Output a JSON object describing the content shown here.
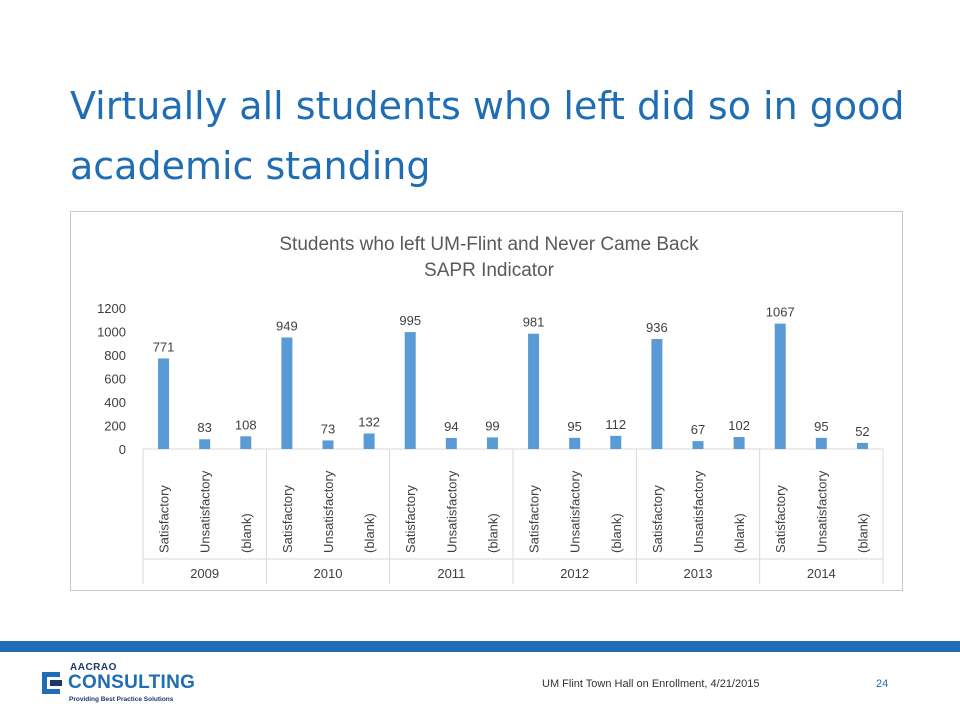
{
  "slide": {
    "title": "Virtually all students who left did so in good academic standing",
    "footer_text": "UM Flint Town Hall on Enrollment, 4/21/2015",
    "page_number": "24"
  },
  "logo": {
    "top": "AACRAO",
    "main": "CONSULTING",
    "tagline": "Providing Best Practice Solutions"
  },
  "colors": {
    "bar": "#5b9bd5",
    "title": "#1f6db5",
    "footer_bar": "#1f6db5"
  },
  "chart_data": {
    "type": "bar",
    "title": "Students who left UM-Flint and Never Came Back",
    "subtitle": "SAPR Indicator",
    "ylim": [
      0,
      1200
    ],
    "yticks": [
      0,
      200,
      400,
      600,
      800,
      1000,
      1200
    ],
    "groups": [
      {
        "label": "2009",
        "categories": [
          "Satisfactory",
          "Unsatisfactory",
          "(blank)"
        ],
        "values": [
          771,
          83,
          108
        ]
      },
      {
        "label": "2010",
        "categories": [
          "Satisfactory",
          "Unsatisfactory",
          "(blank)"
        ],
        "values": [
          949,
          73,
          132
        ]
      },
      {
        "label": "2011",
        "categories": [
          "Satisfactory",
          "Unsatisfactory",
          "(blank)"
        ],
        "values": [
          995,
          94,
          99
        ]
      },
      {
        "label": "2012",
        "categories": [
          "Satisfactory",
          "Unsatisfactory",
          "(blank)"
        ],
        "values": [
          981,
          95,
          112
        ]
      },
      {
        "label": "2013",
        "categories": [
          "Satisfactory",
          "Unsatisfactory",
          "(blank)"
        ],
        "values": [
          936,
          67,
          102
        ]
      },
      {
        "label": "2014",
        "categories": [
          "Satisfactory",
          "Unsatisfactory",
          "(blank)"
        ],
        "values": [
          1067,
          95,
          52
        ]
      }
    ],
    "legend": "none",
    "grid": false
  }
}
